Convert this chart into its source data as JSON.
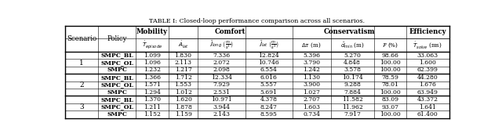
{
  "title": "TABLE I: Closed-loop performance comparison across all scenarios.",
  "rows": [
    [
      "1",
      "SMPC_BL",
      "1.099",
      "1.830",
      "7.336",
      "12.824",
      "5.396",
      "5.270",
      "98.66",
      "33.063"
    ],
    [
      "1",
      "SMPC_OL",
      "1.096",
      "2.113",
      "2.072",
      "10.746",
      "3.790",
      "4.848",
      "100.00",
      "1.600"
    ],
    [
      "1",
      "SMPC",
      "1.232",
      "1.217",
      "2.098",
      "6.554",
      "1.242",
      "3.578",
      "100.00",
      "62.399"
    ],
    [
      "2",
      "SMPC_BL",
      "1.366",
      "1.712",
      "12.334",
      "6.016",
      "1.130",
      "10.174",
      "78.59",
      "44.280"
    ],
    [
      "2",
      "SMPC_OL",
      "1.571",
      "1.553",
      "7.929",
      "5.557",
      "3.900",
      "9.288",
      "78.01",
      "1.676"
    ],
    [
      "2",
      "SMPC",
      "1.294",
      "1.012",
      "2.531",
      "5.691",
      "1.027",
      "7.884",
      "100.00",
      "63.949"
    ],
    [
      "3",
      "SMPC_BL",
      "1.370",
      "1.620",
      "10.971",
      "4.378",
      "2.707",
      "11.582",
      "83.09",
      "43.372"
    ],
    [
      "3",
      "SMPC_OL",
      "1.211",
      "1.878",
      "3.944",
      "8.247",
      "1.603",
      "11.962",
      "93.07",
      "1.641"
    ],
    [
      "3",
      "SMPC",
      "1.152",
      "1.159",
      "2.143",
      "8.595",
      "0.734",
      "7.917",
      "100.00",
      "61.400"
    ]
  ],
  "bg_color": "#ffffff",
  "line_color": "#000000",
  "text_color": "#000000"
}
